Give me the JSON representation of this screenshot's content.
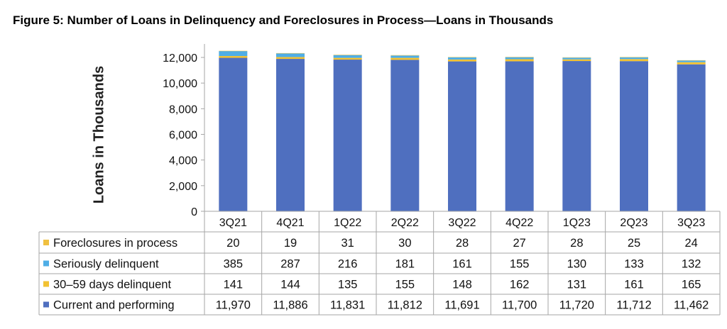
{
  "chart_data": {
    "type": "bar",
    "stacked": true,
    "title": "Figure 5: Number of Loans in Delinquency and Foreclosures in Process—Loans in Thousands",
    "xlabel": "",
    "ylabel": "Loans in Thousands",
    "ylim": [
      0,
      12000
    ],
    "yticks": [
      0,
      2000,
      4000,
      6000,
      8000,
      10000,
      12000
    ],
    "ytick_labels": [
      "0",
      "2,000",
      "4,000",
      "6,000",
      "8,000",
      "10,000",
      "12,000"
    ],
    "categories": [
      "3Q21",
      "4Q21",
      "1Q22",
      "2Q22",
      "3Q22",
      "4Q22",
      "1Q23",
      "2Q23",
      "3Q23"
    ],
    "series": [
      {
        "name": "Current and performing",
        "color": "#4f6fbf",
        "values": [
          11970,
          11886,
          11831,
          11812,
          11691,
          11700,
          11720,
          11712,
          11462
        ],
        "labels": [
          "11,970",
          "11,886",
          "11,831",
          "11,812",
          "11,691",
          "11,700",
          "11,720",
          "11,712",
          "11,462"
        ]
      },
      {
        "name": "30–59 days delinquent",
        "color": "#f2c232",
        "values": [
          141,
          144,
          135,
          155,
          148,
          162,
          131,
          161,
          165
        ],
        "labels": [
          "141",
          "144",
          "135",
          "155",
          "148",
          "162",
          "131",
          "161",
          "165"
        ]
      },
      {
        "name": "Seriously delinquent",
        "color": "#4faee6",
        "values": [
          385,
          287,
          216,
          181,
          161,
          155,
          130,
          133,
          132
        ],
        "labels": [
          "385",
          "287",
          "216",
          "181",
          "161",
          "155",
          "130",
          "133",
          "132"
        ]
      },
      {
        "name": "Foreclosures in process",
        "color": "#f0c040",
        "values": [
          20,
          19,
          31,
          30,
          28,
          27,
          28,
          25,
          24
        ],
        "labels": [
          "20",
          "19",
          "31",
          "30",
          "28",
          "27",
          "28",
          "25",
          "24"
        ]
      }
    ],
    "legend": "data-table-below",
    "grid": false
  }
}
